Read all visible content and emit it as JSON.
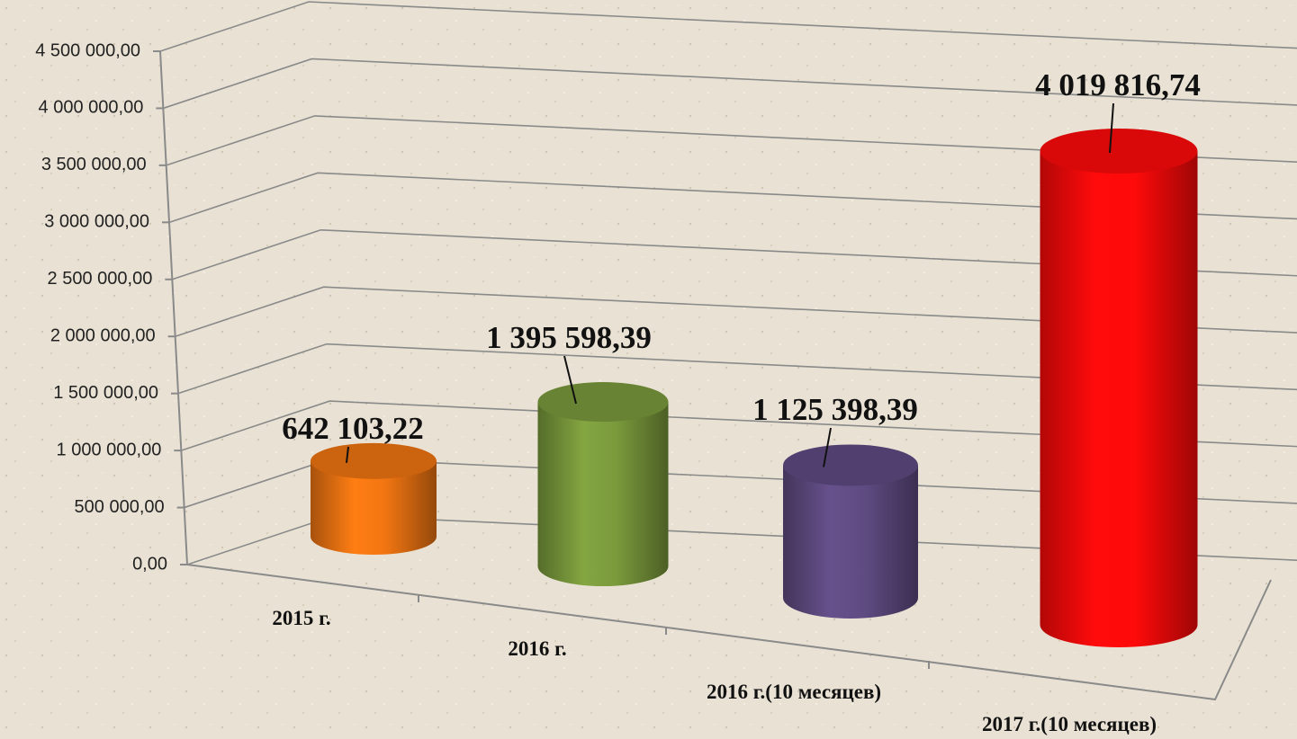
{
  "chart_data": {
    "type": "bar3d",
    "categories": [
      "2015 г.",
      "2016 г.",
      "2016 г.(10 месяцев)",
      "2017 г.(10 месяцев)"
    ],
    "values": [
      642103.22,
      1395598.39,
      1125398.39,
      4019816.74
    ],
    "value_labels": [
      "642 103,22",
      "1 395 598,39",
      "1 125 398,39",
      "4 019 816,74"
    ],
    "colors": [
      "#f07512",
      "#7a9a3c",
      "#5f4b82",
      "#ff0a0a"
    ],
    "ylim": [
      0,
      4500000
    ],
    "yticks": [
      {
        "value": 0,
        "label": "0,00"
      },
      {
        "value": 500000,
        "label": "500 000,00"
      },
      {
        "value": 1000000,
        "label": "1 000 000,00"
      },
      {
        "value": 1500000,
        "label": "1 500 000,00"
      },
      {
        "value": 2000000,
        "label": "2 000 000,00"
      },
      {
        "value": 2500000,
        "label": "2 500 000,00"
      },
      {
        "value": 3000000,
        "label": "3 000 000,00"
      },
      {
        "value": 3500000,
        "label": "3 500 000,00"
      },
      {
        "value": 4000000,
        "label": "4 000 000,00"
      },
      {
        "value": 4500000,
        "label": "4 500 000,00"
      }
    ],
    "grid": true
  }
}
